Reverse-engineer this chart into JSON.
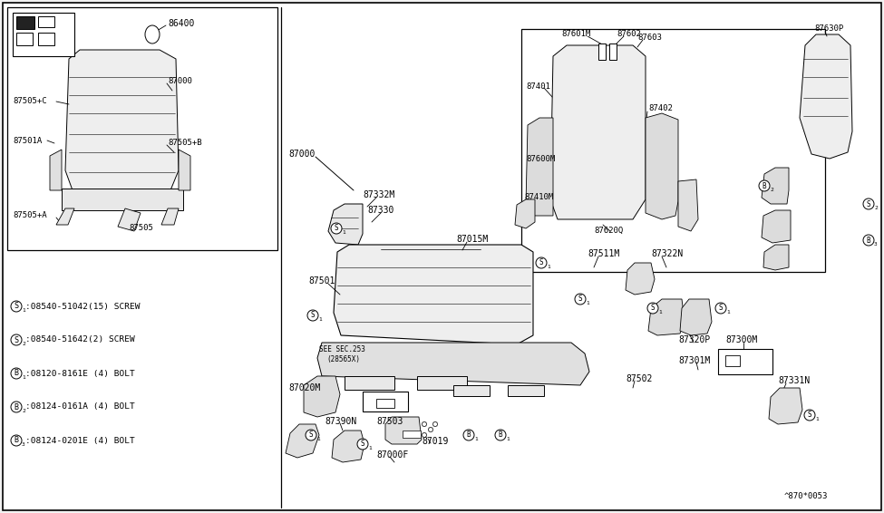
{
  "bg_color": "#f2f2f2",
  "diagram_bg": "#ffffff",
  "line_color": "#000000",
  "part_number_bottom_right": "^870*0053",
  "legend_items": [
    [
      "S",
      "1",
      "08540-51042(15) SCREW"
    ],
    [
      "S",
      "2",
      "08540-51642(2) SCREW"
    ],
    [
      "B",
      "1",
      "08120-8161E (4) BOLT"
    ],
    [
      "B",
      "2",
      "08124-0161A (4) BOLT"
    ],
    [
      "B",
      "3",
      "08124-0201E (4) BOLT"
    ]
  ],
  "figsize": [
    9.75,
    5.66
  ],
  "dpi": 100
}
